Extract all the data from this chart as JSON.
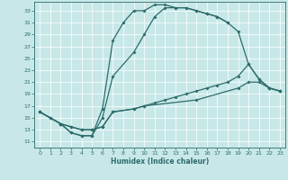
{
  "xlabel": "Humidex (Indice chaleur)",
  "bg_color": "#c8e8e8",
  "line_color": "#2d6b6b",
  "grid_color": "#ffffff",
  "xlim": [
    -0.5,
    23.5
  ],
  "ylim": [
    10.0,
    34.5
  ],
  "xticks": [
    0,
    1,
    2,
    3,
    4,
    5,
    6,
    7,
    8,
    9,
    10,
    11,
    12,
    13,
    14,
    15,
    16,
    17,
    18,
    19,
    20,
    21,
    22,
    23
  ],
  "yticks": [
    11,
    13,
    15,
    17,
    19,
    21,
    23,
    25,
    27,
    29,
    31,
    33
  ],
  "line1_x": [
    0,
    1,
    2,
    3,
    4,
    5,
    6,
    7,
    8,
    9,
    10,
    11,
    12,
    13,
    14,
    15,
    16,
    17,
    18
  ],
  "line1_y": [
    16,
    15,
    14,
    12.5,
    12,
    12,
    16.5,
    28,
    31,
    33,
    33,
    34,
    34,
    33.5,
    33.5,
    33,
    32.5,
    32,
    31
  ],
  "line2_x": [
    0,
    1,
    2,
    3,
    4,
    5,
    6,
    7,
    9,
    10,
    11,
    12,
    13,
    14,
    15,
    16,
    17,
    18,
    19,
    20,
    21,
    22,
    23
  ],
  "line2_y": [
    16,
    15,
    14,
    12.5,
    12,
    12,
    15,
    22,
    26,
    29,
    32,
    33.5,
    33.5,
    33.5,
    33,
    32.5,
    32,
    31,
    29.5,
    24,
    21.5,
    20,
    19.5
  ],
  "line3_x": [
    0,
    2,
    3,
    4,
    5,
    6,
    7,
    9,
    10,
    11,
    12,
    13,
    14,
    15,
    16,
    17,
    18,
    19,
    20,
    21,
    22,
    23
  ],
  "line3_y": [
    16,
    14,
    13.5,
    13,
    13,
    13.5,
    16,
    16.5,
    17,
    17.5,
    18,
    18.5,
    19,
    19.5,
    20,
    20.5,
    21,
    22,
    24,
    21.5,
    20,
    19.5
  ],
  "line4_x": [
    0,
    2,
    3,
    4,
    5,
    6,
    7,
    9,
    10,
    15,
    19,
    20,
    21,
    22,
    23
  ],
  "line4_y": [
    16,
    14,
    13.5,
    13,
    13,
    13.5,
    16,
    16.5,
    17,
    18,
    20,
    21,
    21,
    20,
    19.5
  ]
}
